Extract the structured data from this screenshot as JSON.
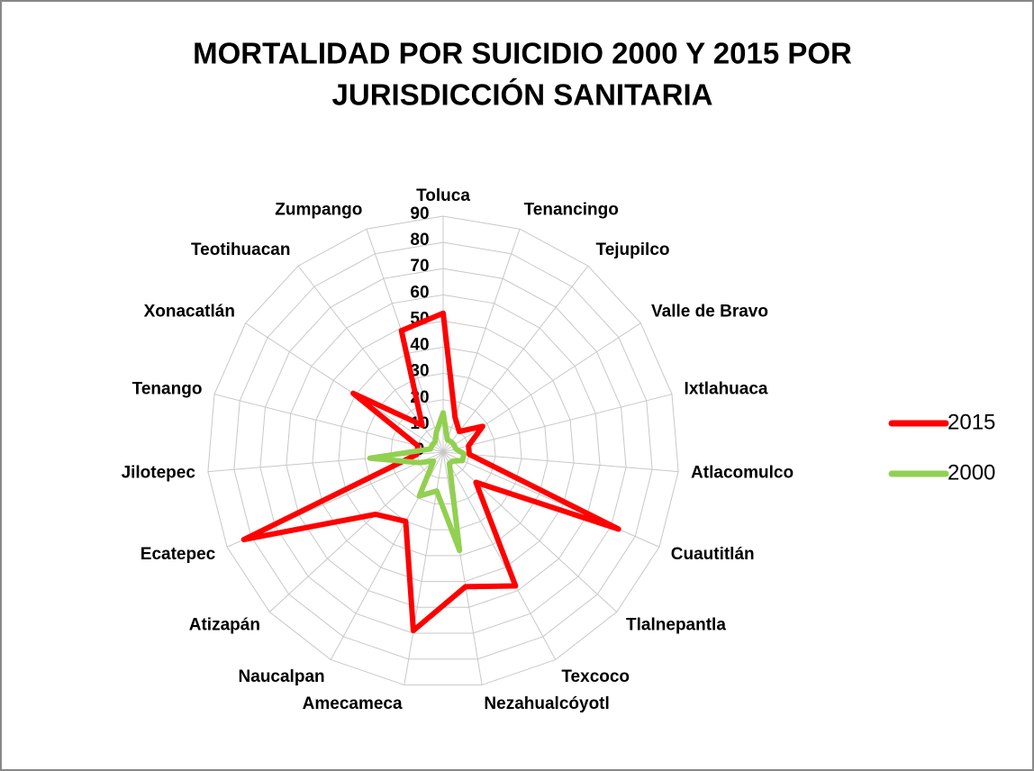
{
  "chart_data": {
    "type": "radar",
    "title": [
      "MORTALIDAD POR SUICIDIO 2000 Y 2015 POR",
      "JURISDICCIÓN SANITARIA"
    ],
    "categories": [
      "Toluca",
      "Tenancingo",
      "Tejupilco",
      "Valle de Bravo",
      "Ixtlahuaca",
      "Atlacomulco",
      "Cuautitlán",
      "Tlalnepantla",
      "Texcoco",
      "Nezahualcóyotl",
      "Amecameca",
      "Naucalpan",
      "Atizapán",
      "Ecatepec",
      "Jilotepec",
      "Tenango",
      "Xonacatlán",
      "Teotihuacan",
      "Zumpango"
    ],
    "series": [
      {
        "name": "2015",
        "color": "#ff0000",
        "values": [
          53,
          14,
          10,
          18,
          10,
          10,
          73,
          17,
          58,
          52,
          69,
          30,
          35,
          83,
          10,
          10,
          41,
          13,
          49
        ]
      },
      {
        "name": "2000",
        "color": "#92d050",
        "values": [
          15,
          5,
          5,
          5,
          5,
          8,
          8,
          5,
          5,
          38,
          15,
          19,
          5,
          10,
          28,
          5,
          5,
          5,
          8
        ]
      }
    ],
    "ylim": [
      0,
      90
    ],
    "yticks": [
      0,
      10,
      20,
      30,
      40,
      50,
      60,
      70,
      80,
      90
    ],
    "grid": true,
    "legend": "right"
  }
}
